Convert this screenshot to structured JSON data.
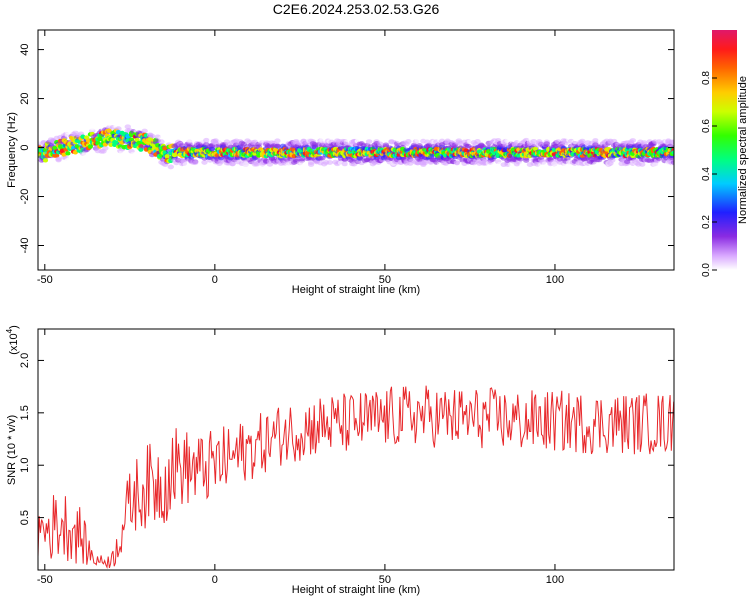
{
  "title": "C2E6.2024.253.02.53.G26",
  "chart_data": [
    {
      "type": "heatmap",
      "title": "C2E6.2024.253.02.53.G26",
      "xlabel": "Height of straight line (km)",
      "ylabel": "Frequency (Hz)",
      "xlim": [
        -52,
        135
      ],
      "ylim": [
        -50,
        48
      ],
      "x_ticks": [
        -50,
        0,
        50,
        100
      ],
      "x_tick_labels": [
        "-50",
        "0",
        "50",
        "100"
      ],
      "y_ticks": [
        -40,
        -20,
        0,
        20,
        40
      ],
      "y_tick_labels": [
        "-40",
        "-20",
        "0",
        "20",
        "40"
      ],
      "colorbar": {
        "label": "Normalized spectral amplitude",
        "range": [
          0,
          1
        ],
        "ticks": [
          0.0,
          0.2,
          0.4,
          0.6,
          0.8
        ],
        "tick_labels": [
          "0.0",
          "0.2",
          "0.4",
          "0.6",
          "0.8"
        ]
      },
      "ridge": {
        "description_points_x": [
          -52,
          -45,
          -38,
          -34,
          -30,
          -25,
          -20,
          -17,
          -14,
          -12,
          0,
          50,
          100,
          135
        ],
        "frequency_hz": [
          -3,
          0,
          2,
          3,
          4,
          3,
          2,
          0,
          -3,
          -2,
          -2,
          -2,
          -2,
          -2
        ]
      }
    },
    {
      "type": "line",
      "xlabel": "Height of straight line (km)",
      "ylabel": "SNR (10 * v/v)",
      "scale_label": "(x10",
      "scale_exponent": "4",
      "xlim": [
        -52,
        135
      ],
      "ylim": [
        0,
        2.3
      ],
      "x_ticks": [
        -50,
        0,
        50,
        100
      ],
      "x_tick_labels": [
        "-50",
        "0",
        "50",
        "100"
      ],
      "y_ticks": [
        0.5,
        1.0,
        1.5,
        2.0
      ],
      "y_tick_labels": [
        "0.5",
        "1.0",
        "1.5",
        "2.0"
      ],
      "series": [
        {
          "color": "#e8282b",
          "trend_x": [
            -52,
            -45,
            -40,
            -36,
            -33,
            -30,
            -27,
            -24,
            -20,
            -15,
            -12,
            -5,
            0,
            10,
            20,
            30,
            40,
            50,
            60,
            70,
            80,
            90,
            100,
            110,
            120,
            135
          ],
          "trend_y": [
            0.35,
            0.45,
            0.35,
            0.12,
            0.08,
            0.1,
            0.45,
            0.7,
            0.8,
            0.85,
            1.0,
            0.95,
            1.0,
            1.15,
            1.3,
            1.38,
            1.4,
            1.45,
            1.48,
            1.45,
            1.45,
            1.42,
            1.42,
            1.4,
            1.4,
            1.4
          ],
          "spread": [
            0.3,
            0.35,
            0.3,
            0.1,
            0.05,
            0.1,
            0.3,
            0.35,
            0.4,
            0.45,
            0.4,
            0.35,
            0.35,
            0.3,
            0.3,
            0.3,
            0.3,
            0.3,
            0.3,
            0.3,
            0.3,
            0.3,
            0.3,
            0.3,
            0.3,
            0.3
          ]
        }
      ]
    }
  ],
  "colors": {
    "line": "#e8282b",
    "axis": "#000000"
  }
}
